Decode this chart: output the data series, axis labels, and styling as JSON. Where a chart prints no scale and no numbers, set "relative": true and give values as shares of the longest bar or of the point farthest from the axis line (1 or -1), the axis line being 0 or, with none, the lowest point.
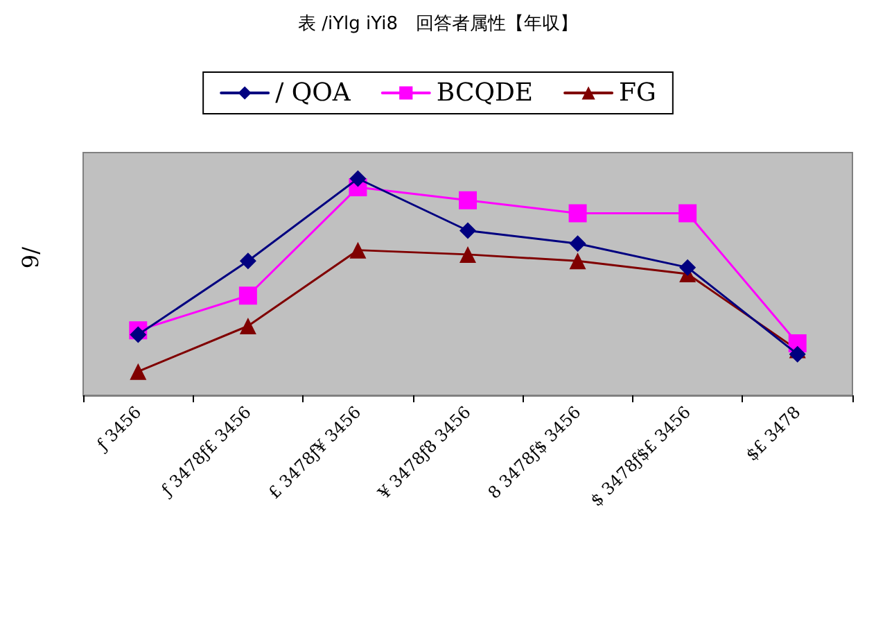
{
  "chart_data": {
    "type": "line",
    "title": "表 /iYlg iYi8　回答者属性【年収】",
    "ylabel": "9/",
    "relative": true,
    "categories": [
      "ƒ 3456",
      "ƒ 3478ƒ£ 3456",
      "£ 3478ƒ¥ 3456",
      "¥ 3478ƒ8 3456",
      "8 3478ƒ$ 3456",
      "$ 3478ƒ$£ 3456",
      "$£ 3478"
    ],
    "series": [
      {
        "name": "/ QOA",
        "color": "#000080",
        "marker": "diamond",
        "values": [
          0.28,
          0.62,
          1,
          0.76,
          0.7,
          0.59,
          0.19
        ]
      },
      {
        "name": "BCQDE",
        "color": "#ff00ff",
        "marker": "square",
        "values": [
          0.3,
          0.46,
          0.96,
          0.9,
          0.84,
          0.84,
          0.24
        ]
      },
      {
        "name": "FG",
        "color": "#800000",
        "marker": "triangle",
        "values": [
          0.11,
          0.32,
          0.67,
          0.65,
          0.62,
          0.56,
          0.21
        ]
      }
    ],
    "legend": "top",
    "line_style": "solid"
  }
}
